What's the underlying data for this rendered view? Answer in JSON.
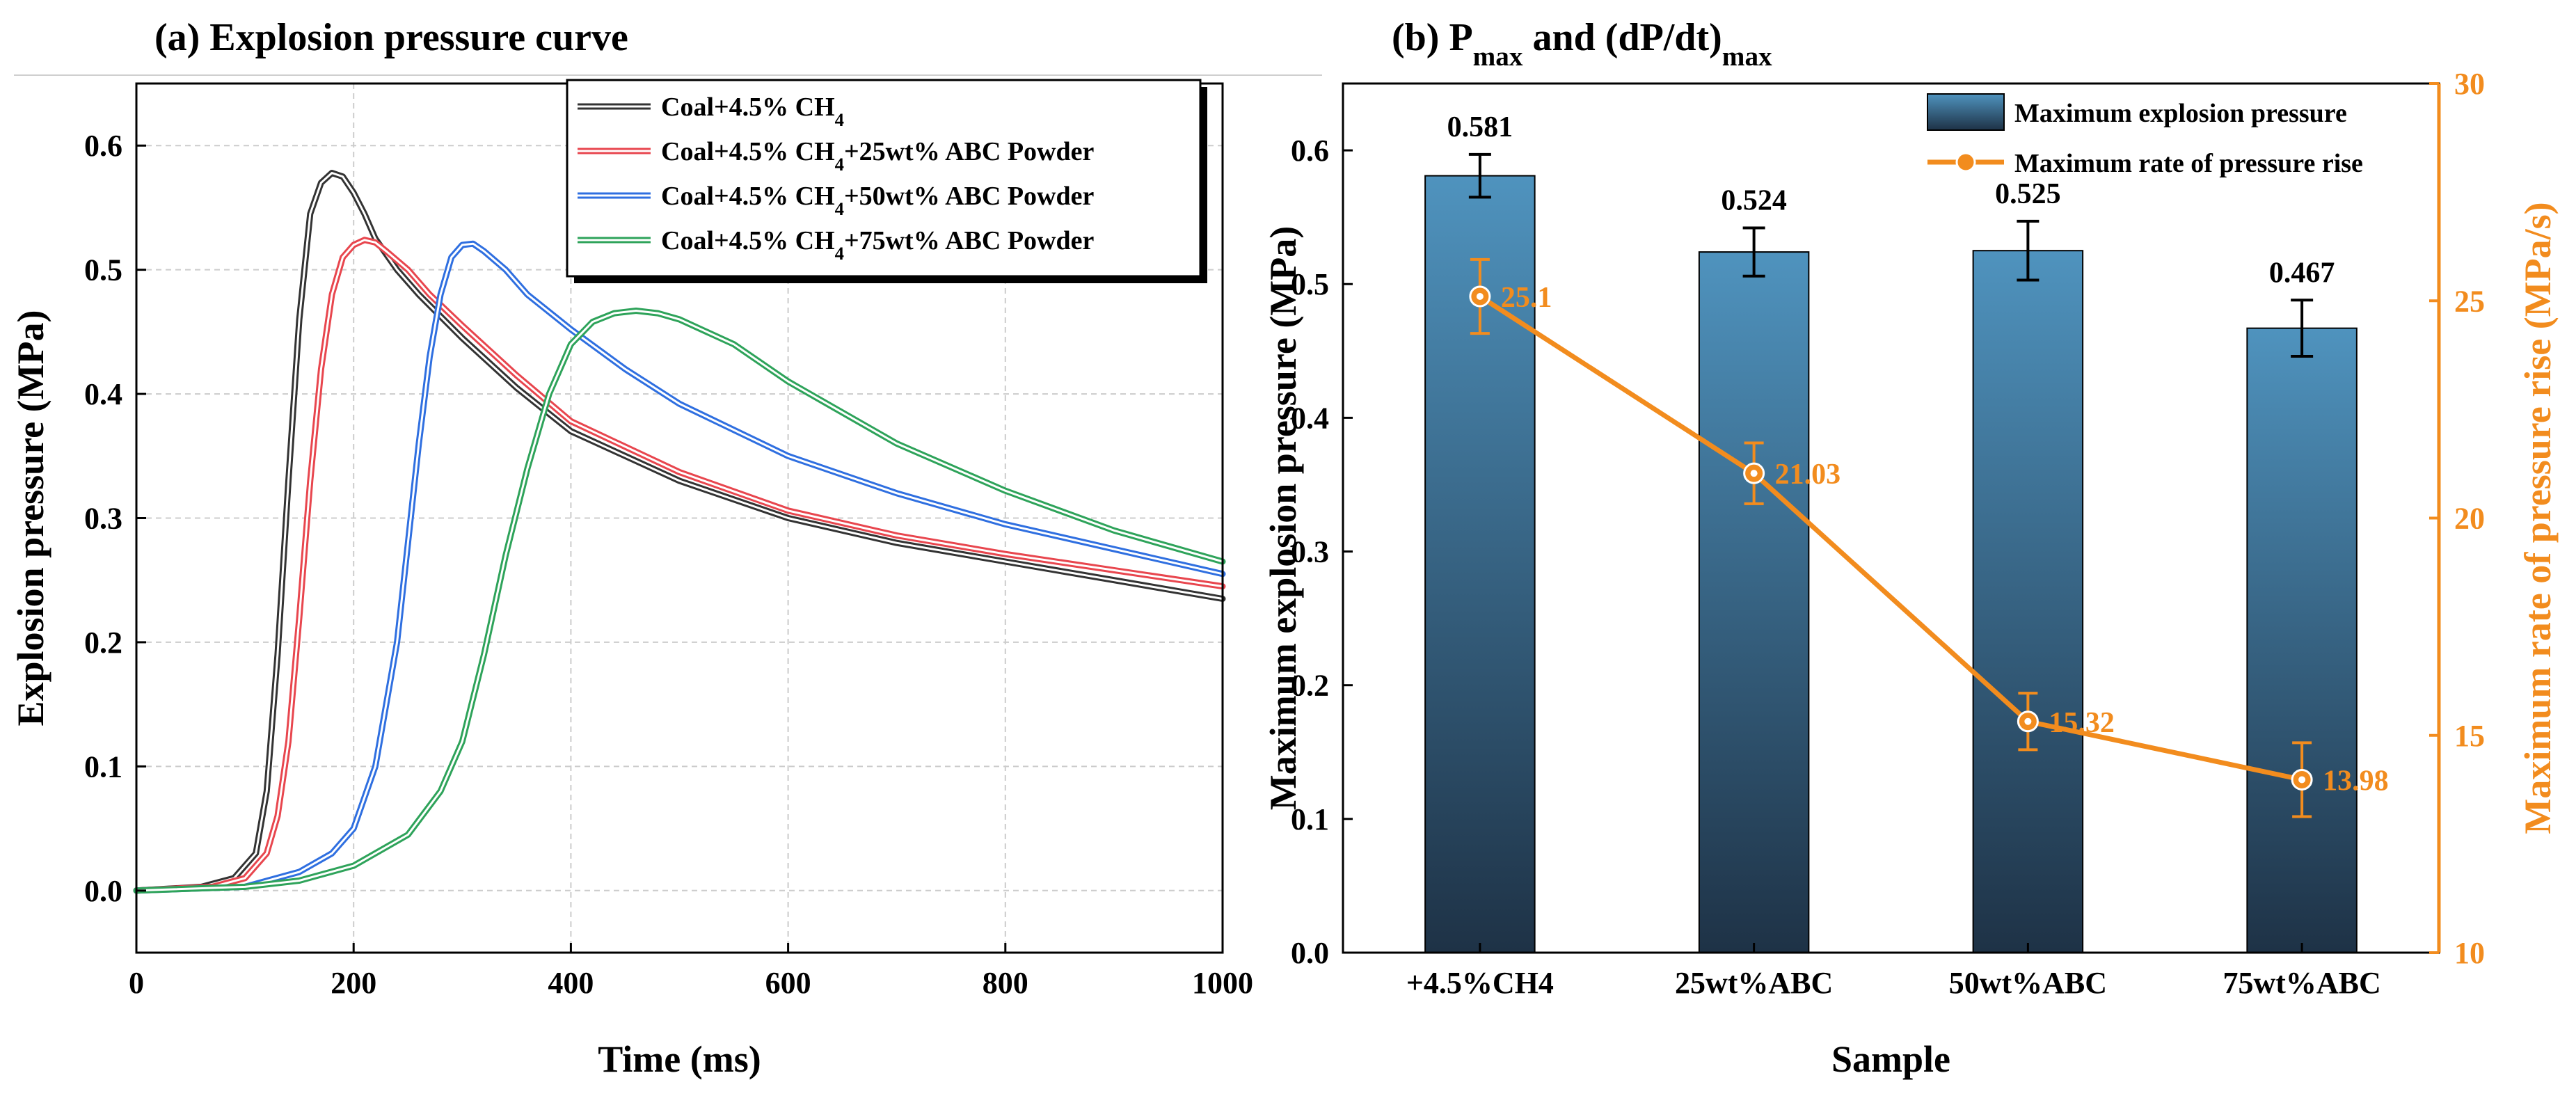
{
  "chart_data": [
    {
      "type": "line",
      "title": "(a) Explosion pressure curve",
      "xlabel": "Time (ms)",
      "ylabel": "Explosion pressure (MPa)",
      "xlim": [
        0,
        1000
      ],
      "ylim": [
        -0.05,
        0.65
      ],
      "xticks": [
        "0",
        "200",
        "400",
        "600",
        "800",
        "1000"
      ],
      "yticks": [
        "0.0",
        "0.1",
        "0.2",
        "0.3",
        "0.4",
        "0.5",
        "0.6"
      ],
      "grid": true,
      "legend_position": "top-right",
      "series": [
        {
          "name": "Coal+4.5% CH4",
          "label_base": "Coal+4.5% CH",
          "label_sub": "4",
          "label_tail": "",
          "color": "#333333",
          "x": [
            0,
            60,
            90,
            110,
            120,
            130,
            140,
            150,
            160,
            170,
            180,
            190,
            200,
            210,
            220,
            240,
            260,
            300,
            350,
            400,
            500,
            600,
            700,
            800,
            900,
            1000
          ],
          "y": [
            0,
            0.003,
            0.01,
            0.03,
            0.08,
            0.19,
            0.33,
            0.46,
            0.545,
            0.57,
            0.578,
            0.575,
            0.562,
            0.545,
            0.525,
            0.5,
            0.48,
            0.445,
            0.405,
            0.37,
            0.33,
            0.3,
            0.28,
            0.265,
            0.25,
            0.235
          ]
        },
        {
          "name": "Coal+4.5% CH4+25wt% ABC Powder",
          "label_base": "Coal+4.5% CH",
          "label_sub": "4",
          "label_tail": "+25wt% ABC Powder",
          "color": "#E8464E",
          "x": [
            0,
            70,
            100,
            120,
            130,
            140,
            150,
            160,
            170,
            180,
            190,
            200,
            210,
            220,
            230,
            250,
            270,
            300,
            350,
            400,
            500,
            600,
            700,
            800,
            900,
            1000
          ],
          "y": [
            0,
            0.003,
            0.01,
            0.03,
            0.06,
            0.12,
            0.22,
            0.33,
            0.42,
            0.48,
            0.51,
            0.52,
            0.524,
            0.522,
            0.515,
            0.5,
            0.48,
            0.455,
            0.415,
            0.378,
            0.337,
            0.306,
            0.286,
            0.271,
            0.258,
            0.245
          ]
        },
        {
          "name": "Coal+4.5% CH4+50wt% ABC Powder",
          "label_base": "Coal+4.5% CH",
          "label_sub": "4",
          "label_tail": "+50wt% ABC Powder",
          "color": "#2F6FE0",
          "x": [
            0,
            100,
            150,
            180,
            200,
            220,
            240,
            250,
            260,
            270,
            280,
            290,
            300,
            310,
            320,
            340,
            360,
            400,
            450,
            500,
            600,
            700,
            800,
            900,
            1000
          ],
          "y": [
            0,
            0.003,
            0.015,
            0.03,
            0.05,
            0.1,
            0.2,
            0.28,
            0.36,
            0.43,
            0.48,
            0.51,
            0.52,
            0.521,
            0.515,
            0.5,
            0.48,
            0.452,
            0.42,
            0.392,
            0.35,
            0.32,
            0.295,
            0.275,
            0.255
          ]
        },
        {
          "name": "Coal+4.5% CH4+75wt% ABC Powder",
          "label_base": "Coal+4.5% CH",
          "label_sub": "4",
          "label_tail": "+75wt% ABC Powder",
          "color": "#2EA35A",
          "x": [
            0,
            100,
            150,
            200,
            250,
            280,
            300,
            320,
            340,
            360,
            380,
            400,
            420,
            440,
            460,
            480,
            500,
            550,
            600,
            700,
            800,
            900,
            1000
          ],
          "y": [
            0,
            0.003,
            0.008,
            0.02,
            0.045,
            0.08,
            0.12,
            0.19,
            0.27,
            0.34,
            0.4,
            0.44,
            0.458,
            0.465,
            0.467,
            0.465,
            0.46,
            0.44,
            0.41,
            0.36,
            0.322,
            0.29,
            0.265
          ]
        }
      ]
    },
    {
      "type": "bar",
      "title_base": "(b) P",
      "title_sub1": "max",
      "title_mid": " and (dP/dt)",
      "title_sub2": "max",
      "xlabel": "Sample",
      "ylabel": "Maximum explosion pressure (MPa)",
      "y2label": "Maximum rate of pressure rise (MPa/s)",
      "categories": [
        "+4.5%CH4",
        "25wt%ABC",
        "50wt%ABC",
        "75wt%ABC"
      ],
      "ylim": [
        0,
        0.65
      ],
      "y2lim": [
        10,
        30
      ],
      "yticks": [
        "0.0",
        "0.1",
        "0.2",
        "0.3",
        "0.4",
        "0.5",
        "0.6"
      ],
      "y2ticks": [
        "10",
        "15",
        "20",
        "25",
        "30"
      ],
      "legend_position": "top-right",
      "colors": {
        "bar_top": "#4F93BE",
        "bar_bottom": "#1E3246",
        "line": "#F28C1E"
      },
      "series": [
        {
          "name": "Maximum explosion pressure",
          "values": [
            0.581,
            0.524,
            0.525,
            0.467
          ],
          "errors": [
            0.016,
            0.018,
            0.022,
            0.021
          ],
          "labels": [
            "0.581",
            "0.524",
            "0.525",
            "0.467"
          ]
        },
        {
          "name": "Maximum rate of pressure rise",
          "axis": "right",
          "values": [
            25.1,
            21.03,
            15.32,
            13.98
          ],
          "errors": [
            0.85,
            0.7,
            0.65,
            0.85
          ],
          "labels": [
            "25.1",
            "21.03",
            "15.32",
            "13.98"
          ]
        }
      ]
    }
  ]
}
